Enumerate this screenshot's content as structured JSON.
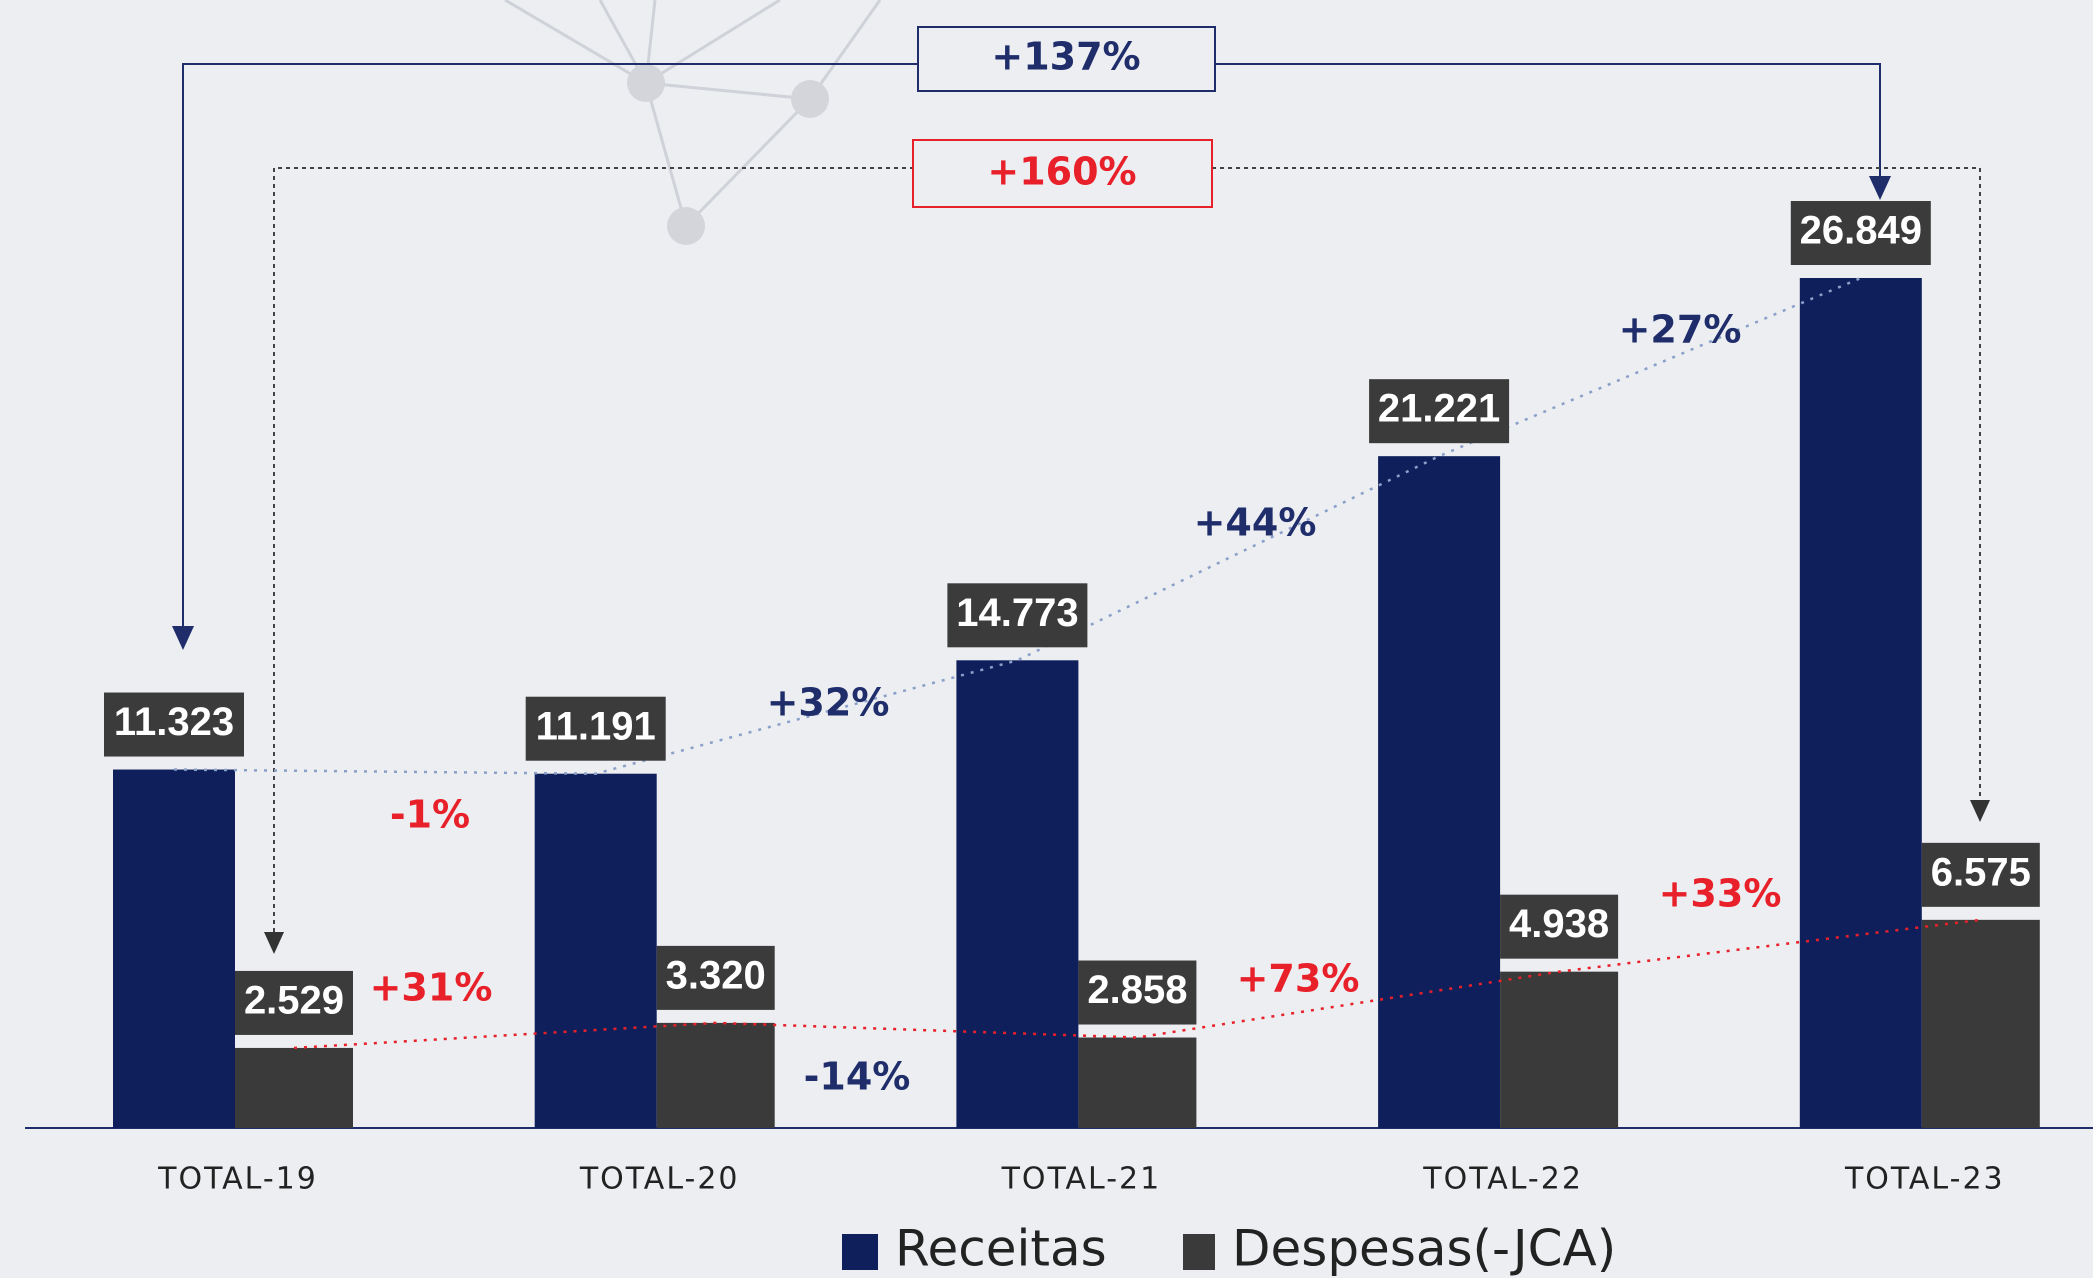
{
  "chart_data": {
    "type": "bar",
    "categories": [
      "TOTAL-19",
      "TOTAL-20",
      "TOTAL-21",
      "TOTAL-22",
      "TOTAL-23"
    ],
    "series": [
      {
        "name": "Receitas",
        "color": "#0f1f5c",
        "values": [
          11323,
          11191,
          14773,
          21221,
          26849
        ],
        "value_labels": [
          "11.323",
          "11.191",
          "14.773",
          "21.221",
          "26.849"
        ]
      },
      {
        "name": "Despesas(-JCA)",
        "color": "#3a3a3a",
        "values": [
          2529,
          3320,
          2858,
          4938,
          6575
        ],
        "value_labels": [
          "2.529",
          "3.320",
          "2.858",
          "4.938",
          "6.575"
        ]
      }
    ],
    "annotations": [
      {
        "text": "+137%",
        "color": "#1f2d6b"
      },
      {
        "text": "+160%",
        "color": "#e8202a"
      },
      {
        "text": "-1%",
        "color": "#e8202a"
      },
      {
        "text": "+32%",
        "color": "#1f2d6b"
      },
      {
        "text": "+44%",
        "color": "#1f2d6b"
      },
      {
        "text": "+27%",
        "color": "#1f2d6b"
      },
      {
        "text": "+31%",
        "color": "#e8202a"
      },
      {
        "text": "-14%",
        "color": "#1f2d6b"
      },
      {
        "text": "+73%",
        "color": "#e8202a"
      },
      {
        "text": "+33%",
        "color": "#e8202a"
      }
    ]
  }
}
